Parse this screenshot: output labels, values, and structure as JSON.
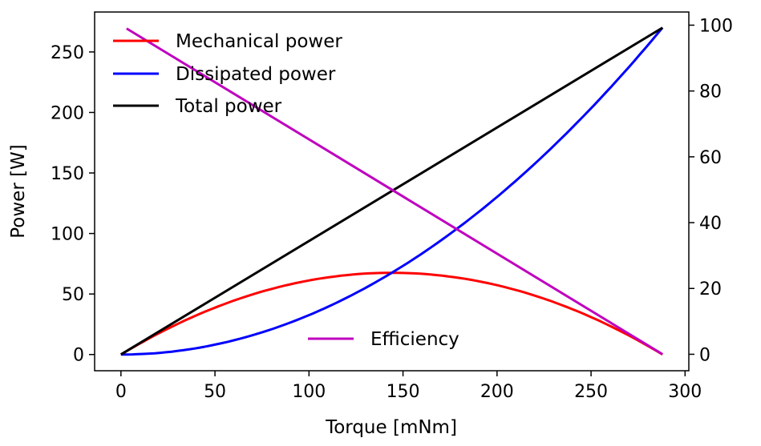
{
  "chart_data": {
    "type": "line",
    "xlabel": "Torque [mNm]",
    "ylabel": "Power [W]",
    "y2label": "",
    "xlim": [
      -14,
      302
    ],
    "ylim": [
      -13.4,
      283
    ],
    "y2lim": [
      -5,
      104
    ],
    "xticks": [
      0,
      50,
      100,
      150,
      200,
      250,
      300
    ],
    "yticks": [
      0,
      50,
      100,
      150,
      200,
      250
    ],
    "y2ticks": [
      0,
      20,
      40,
      60,
      80,
      100
    ],
    "grid": false,
    "legend_placement": "upper-left",
    "legend2_placement": "lower-center",
    "series": [
      {
        "name": "Mechanical power",
        "axis": "left",
        "color": "#ff0000",
        "x": [
          0,
          24,
          48,
          72,
          96,
          120,
          144,
          168,
          192,
          216,
          240,
          264,
          288
        ],
        "y": [
          0,
          15.5,
          28.2,
          38.0,
          45.1,
          49.3,
          50.7,
          49.3,
          45.1,
          38.0,
          28.2,
          15.5,
          0
        ],
        "note": ""
      },
      {
        "name": "Dissipated power",
        "axis": "left",
        "color": "#0000ff",
        "x": [
          0,
          24,
          48,
          72,
          96,
          120,
          144,
          168,
          192,
          216,
          240,
          264,
          288
        ],
        "y": [
          0,
          1.9,
          7.5,
          16.9,
          30.0,
          46.9,
          67.5,
          91.9,
          120.0,
          151.9,
          187.5,
          226.9,
          270.0
        ]
      },
      {
        "name": "Total power",
        "axis": "left",
        "color": "#000000",
        "x": [
          0,
          288
        ],
        "y": [
          0,
          270
        ]
      },
      {
        "name": "Efficiency",
        "axis": "right",
        "color": "#bf00bf",
        "x": [
          3,
          288
        ],
        "y": [
          99,
          0
        ]
      }
    ]
  }
}
